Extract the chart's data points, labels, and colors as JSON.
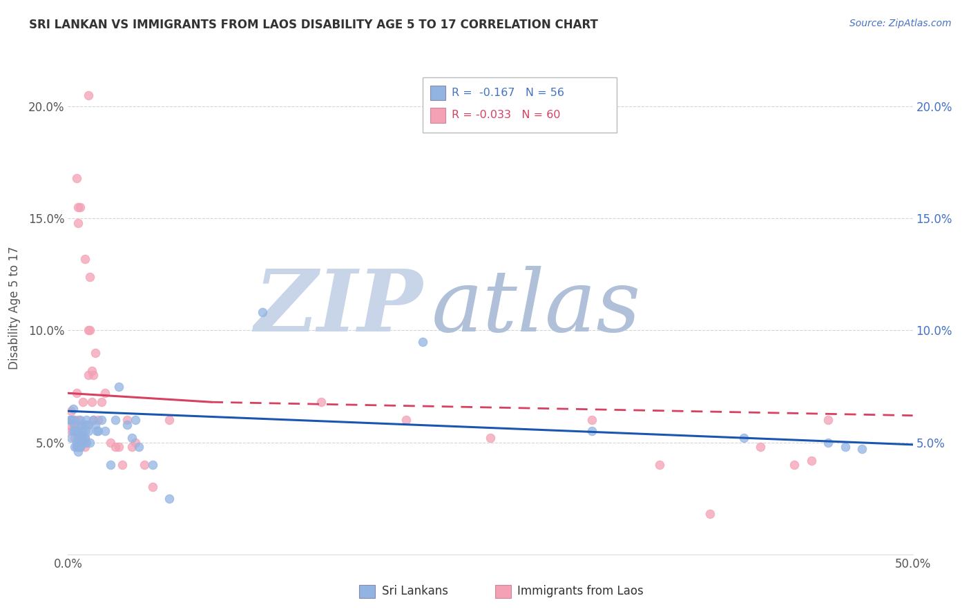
{
  "title": "SRI LANKAN VS IMMIGRANTS FROM LAOS DISABILITY AGE 5 TO 17 CORRELATION CHART",
  "source": "Source: ZipAtlas.com",
  "ylabel": "Disability Age 5 to 17",
  "xlim": [
    0,
    0.5
  ],
  "ylim": [
    0,
    0.22
  ],
  "watermark_zip": "ZIP",
  "watermark_atlas": "atlas",
  "watermark_color_zip": "#c8d4e8",
  "watermark_color_atlas": "#b8c8dc",
  "dot_size": 80,
  "sri_lankan_color": "#92b4e3",
  "laos_color": "#f4a0b5",
  "blue_line_color": "#1a55b0",
  "pink_line_color": "#d84060",
  "grid_color": "#d0d0d0",
  "sl_R": "-0.167",
  "sl_N": "56",
  "laos_R": "-0.033",
  "laos_N": "60",
  "sl_x": [
    0.001,
    0.002,
    0.002,
    0.003,
    0.003,
    0.003,
    0.004,
    0.004,
    0.004,
    0.005,
    0.005,
    0.005,
    0.006,
    0.006,
    0.006,
    0.007,
    0.007,
    0.007,
    0.007,
    0.008,
    0.008,
    0.008,
    0.008,
    0.009,
    0.009,
    0.009,
    0.01,
    0.01,
    0.01,
    0.011,
    0.011,
    0.012,
    0.012,
    0.013,
    0.015,
    0.016,
    0.017,
    0.018,
    0.02,
    0.022,
    0.025,
    0.028,
    0.03,
    0.035,
    0.038,
    0.04,
    0.042,
    0.05,
    0.06,
    0.115,
    0.21,
    0.31,
    0.4,
    0.45,
    0.46,
    0.47
  ],
  "sl_y": [
    0.06,
    0.052,
    0.06,
    0.055,
    0.065,
    0.06,
    0.048,
    0.055,
    0.058,
    0.05,
    0.048,
    0.055,
    0.046,
    0.054,
    0.052,
    0.048,
    0.052,
    0.06,
    0.048,
    0.05,
    0.055,
    0.058,
    0.05,
    0.053,
    0.052,
    0.05,
    0.058,
    0.055,
    0.052,
    0.05,
    0.06,
    0.058,
    0.055,
    0.05,
    0.06,
    0.058,
    0.055,
    0.055,
    0.06,
    0.055,
    0.04,
    0.06,
    0.075,
    0.058,
    0.052,
    0.06,
    0.048,
    0.04,
    0.025,
    0.108,
    0.095,
    0.055,
    0.052,
    0.05,
    0.048,
    0.047
  ],
  "laos_x": [
    0.001,
    0.002,
    0.002,
    0.003,
    0.003,
    0.004,
    0.004,
    0.004,
    0.005,
    0.005,
    0.005,
    0.006,
    0.006,
    0.006,
    0.006,
    0.007,
    0.007,
    0.007,
    0.007,
    0.008,
    0.008,
    0.008,
    0.008,
    0.009,
    0.009,
    0.01,
    0.01,
    0.01,
    0.011,
    0.012,
    0.012,
    0.013,
    0.014,
    0.014,
    0.015,
    0.015,
    0.016,
    0.018,
    0.02,
    0.022,
    0.025,
    0.028,
    0.03,
    0.032,
    0.035,
    0.038,
    0.04,
    0.045,
    0.05,
    0.06,
    0.15,
    0.2,
    0.25,
    0.31,
    0.35,
    0.38,
    0.41,
    0.43,
    0.44,
    0.45
  ],
  "laos_y": [
    0.058,
    0.064,
    0.055,
    0.058,
    0.06,
    0.052,
    0.058,
    0.06,
    0.048,
    0.055,
    0.072,
    0.048,
    0.05,
    0.052,
    0.06,
    0.052,
    0.048,
    0.05,
    0.052,
    0.05,
    0.052,
    0.055,
    0.058,
    0.05,
    0.068,
    0.048,
    0.05,
    0.052,
    0.058,
    0.08,
    0.1,
    0.1,
    0.068,
    0.082,
    0.06,
    0.08,
    0.09,
    0.06,
    0.068,
    0.072,
    0.05,
    0.048,
    0.048,
    0.04,
    0.06,
    0.048,
    0.05,
    0.04,
    0.03,
    0.06,
    0.068,
    0.06,
    0.052,
    0.06,
    0.04,
    0.018,
    0.048,
    0.04,
    0.042,
    0.06
  ],
  "laos_extra_x": [
    0.012,
    0.005,
    0.006,
    0.007,
    0.006,
    0.01,
    0.013
  ],
  "laos_extra_y": [
    0.205,
    0.168,
    0.155,
    0.155,
    0.148,
    0.132,
    0.124
  ],
  "sl_line_y0": 0.064,
  "sl_line_y1": 0.049,
  "laos_line_solid_x0": 0.0,
  "laos_line_solid_x1": 0.085,
  "laos_line_y0": 0.072,
  "laos_line_y1_solid": 0.068,
  "laos_line_dash_x0": 0.085,
  "laos_line_dash_x1": 0.5,
  "laos_line_y1_dash": 0.062
}
